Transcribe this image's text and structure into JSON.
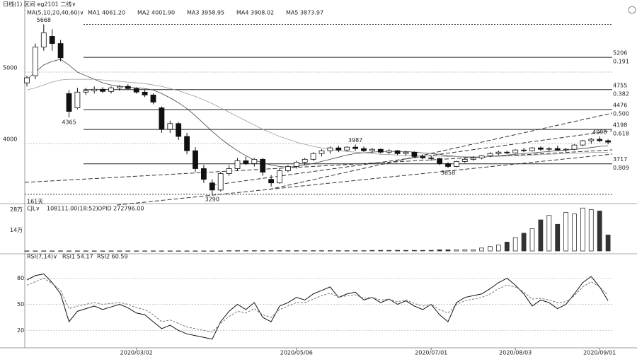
{
  "header": "日线(1)  区间  eg2101  二线∨",
  "ma_legend": [
    "MA(5,10,20,40,60)∨",
    "MA1 4061.20",
    "MA2 4001.90",
    "MA3 3958.95",
    "MA4 3908.02",
    "MA5 3873.97"
  ],
  "chart_data": [
    {
      "type": "candlestick",
      "categories": [
        null,
        null,
        null,
        null,
        null,
        null,
        null,
        null,
        null,
        null,
        null,
        null,
        null,
        "2020/03/02",
        null,
        null,
        null,
        null,
        null,
        null,
        null,
        null,
        null,
        null,
        null,
        null,
        null,
        null,
        null,
        null,
        null,
        null,
        "2020/05/06",
        null,
        null,
        null,
        null,
        null,
        null,
        null,
        null,
        null,
        null,
        null,
        null,
        null,
        null,
        null,
        "2020/07/01",
        null,
        null,
        null,
        null,
        null,
        null,
        null,
        null,
        null,
        "2020/08/03",
        null,
        null,
        null,
        null,
        null,
        null,
        null,
        null,
        null,
        "2020/09/01",
        null
      ],
      "open": [
        4850,
        4950,
        5350,
        5500,
        5400,
        4700,
        4500,
        4720,
        4740,
        4760,
        4730,
        4780,
        4800,
        4770,
        4720,
        4680,
        4500,
        4200,
        4280,
        4100,
        3900,
        3650,
        3450,
        3350,
        3580,
        3650,
        3760,
        3720,
        3780,
        3500,
        3450,
        3620,
        3680,
        3740,
        3780,
        3860,
        3900,
        3940,
        3910,
        3950,
        3930,
        3900,
        3920,
        3880,
        3900,
        3860,
        3880,
        3820,
        3800,
        3790,
        3720,
        3680,
        3750,
        3780,
        3800,
        3830,
        3860,
        3880,
        3870,
        3910,
        3900,
        3940,
        3920,
        3930,
        3910,
        3920,
        3980,
        4040,
        4060,
        4040
      ],
      "high": [
        4950,
        5400,
        5668,
        5600,
        5450,
        4750,
        4780,
        4780,
        4800,
        4790,
        4800,
        4820,
        4830,
        4790,
        4760,
        4700,
        4520,
        4320,
        4300,
        4150,
        3950,
        3700,
        3500,
        3600,
        3700,
        3800,
        3820,
        3800,
        3800,
        3560,
        3650,
        3700,
        3760,
        3800,
        3880,
        3920,
        3960,
        3970,
        3960,
        3987,
        3960,
        3940,
        3930,
        3920,
        3910,
        3900,
        3890,
        3850,
        3830,
        3800,
        3740,
        3760,
        3800,
        3820,
        3840,
        3880,
        3900,
        3900,
        3920,
        3940,
        3950,
        3960,
        3950,
        3970,
        3940,
        3990,
        4050,
        4080,
        4098,
        4060
      ],
      "low": [
        4800,
        4900,
        5300,
        5300,
        5150,
        4365,
        4480,
        4680,
        4700,
        4710,
        4700,
        4740,
        4750,
        4700,
        4650,
        4550,
        4150,
        4150,
        4050,
        3850,
        3600,
        3450,
        3290,
        3330,
        3550,
        3620,
        3700,
        3680,
        3550,
        3400,
        3440,
        3600,
        3650,
        3700,
        3760,
        3820,
        3860,
        3880,
        3890,
        3900,
        3880,
        3870,
        3860,
        3850,
        3840,
        3830,
        3800,
        3780,
        3760,
        3700,
        3658,
        3670,
        3730,
        3760,
        3780,
        3810,
        3840,
        3850,
        3860,
        3880,
        3890,
        3900,
        3890,
        3900,
        3880,
        3910,
        3960,
        4000,
        4020,
        3990
      ],
      "close": [
        4920,
        5350,
        5550,
        5400,
        5200,
        4450,
        4720,
        4740,
        4760,
        4730,
        4780,
        4800,
        4770,
        4720,
        4680,
        4580,
        4200,
        4280,
        4100,
        3900,
        3650,
        3500,
        3350,
        3580,
        3650,
        3760,
        3720,
        3780,
        3600,
        3450,
        3620,
        3680,
        3740,
        3780,
        3860,
        3900,
        3940,
        3910,
        3950,
        3930,
        3900,
        3920,
        3880,
        3900,
        3860,
        3880,
        3820,
        3800,
        3790,
        3720,
        3680,
        3750,
        3780,
        3800,
        3830,
        3860,
        3880,
        3870,
        3910,
        3900,
        3940,
        3920,
        3930,
        3910,
        3920,
        3980,
        4040,
        4060,
        4040,
        4020
      ],
      "series": [
        {
          "color": "#444444",
          "values": [
            4900,
            5000,
            5100,
            5150,
            5180,
            5100,
            5000,
            4950,
            4900,
            4850,
            4820,
            4800,
            4790,
            4780,
            4770,
            4750,
            4700,
            4640,
            4570,
            4490,
            4390,
            4280,
            4170,
            4070,
            3980,
            3900,
            3830,
            3770,
            3730,
            3700,
            3680,
            3670,
            3680,
            3700,
            3720,
            3750,
            3780,
            3810,
            3840,
            3860,
            3870,
            3880,
            3890,
            3890,
            3890,
            3890,
            3880,
            3870,
            3860,
            3850,
            3830,
            3820,
            3810,
            3810,
            3810,
            3820,
            3830,
            3840,
            3850,
            3860,
            3870,
            3880,
            3890,
            3900,
            3910,
            3920,
            3930,
            3945,
            3960,
            3970
          ]
        },
        {
          "color": "#999999",
          "values": [
            4750,
            4780,
            4820,
            4860,
            4890,
            4900,
            4900,
            4900,
            4900,
            4890,
            4880,
            4870,
            4860,
            4850,
            4840,
            4820,
            4800,
            4770,
            4740,
            4700,
            4660,
            4610,
            4560,
            4500,
            4440,
            4380,
            4320,
            4260,
            4200,
            4150,
            4100,
            4060,
            4020,
            3990,
            3960,
            3940,
            3920,
            3900,
            3890,
            3880,
            3870,
            3860,
            3850,
            3845,
            3840,
            3835,
            3830,
            3828,
            3826,
            3824,
            3820,
            3818,
            3816,
            3815,
            3815,
            3818,
            3822,
            3826,
            3830,
            3835,
            3840,
            3845,
            3850,
            3855,
            3860,
            3865,
            3870,
            3875,
            3880,
            3874
          ]
        }
      ],
      "ylim": [
        3190,
        5910
      ],
      "yticks": [
        4000,
        5000
      ],
      "grid": true,
      "fib_levels": [
        {
          "price": 5206,
          "ratio": "0.191"
        },
        {
          "price": 4755,
          "ratio": "0.382"
        },
        {
          "price": 4476,
          "ratio": "0.500"
        },
        {
          "price": 4198,
          "ratio": "0.618"
        },
        {
          "price": 3717,
          "ratio": "0.809"
        }
      ],
      "annotation": "161天"
    },
    {
      "type": "bar",
      "title": "CJL∨",
      "legend": [
        "108111.00(18:52)",
        "OPID 272796.00"
      ],
      "values": [
        500,
        500,
        500,
        500,
        500,
        500,
        500,
        500,
        500,
        500,
        500,
        500,
        500,
        500,
        500,
        500,
        500,
        500,
        500,
        500,
        500,
        500,
        500,
        500,
        2000,
        2000,
        2000,
        2000,
        2000,
        2000,
        2000,
        2000,
        2000,
        2000,
        2000,
        2000,
        2000,
        2000,
        2000,
        2000,
        2000,
        4000,
        4000,
        4000,
        4000,
        4000,
        4000,
        4000,
        4000,
        8000,
        8000,
        8000,
        8000,
        8000,
        20000,
        30000,
        40000,
        60000,
        90000,
        120000,
        150000,
        210000,
        240000,
        180000,
        260000,
        250000,
        290000,
        280000,
        270000,
        108111
      ],
      "ylim": [
        0,
        320000
      ],
      "yticks": [
        {
          "value": 140000,
          "label": "14万"
        },
        {
          "value": 280000,
          "label": "28万"
        }
      ]
    },
    {
      "type": "line",
      "title": "RSI(7,14)∨",
      "series": [
        {
          "name": "RSI1 54.17",
          "color": "#111111",
          "values": [
            78,
            83,
            85,
            75,
            62,
            30,
            42,
            45,
            48,
            44,
            47,
            50,
            46,
            40,
            38,
            30,
            22,
            26,
            20,
            16,
            14,
            12,
            10,
            30,
            42,
            50,
            44,
            52,
            35,
            30,
            48,
            52,
            58,
            55,
            62,
            66,
            70,
            58,
            62,
            64,
            55,
            58,
            52,
            56,
            50,
            54,
            48,
            44,
            50,
            38,
            30,
            52,
            58,
            60,
            62,
            68,
            75,
            80,
            72,
            62,
            48,
            55,
            52,
            45,
            50,
            62,
            75,
            82,
            70,
            54.17
          ]
        },
        {
          "name": "RSI2 60.59",
          "color": "#777777",
          "values": [
            72,
            76,
            80,
            74,
            66,
            45,
            48,
            50,
            52,
            50,
            51,
            52,
            50,
            46,
            44,
            38,
            30,
            32,
            28,
            24,
            22,
            20,
            18,
            28,
            36,
            42,
            40,
            45,
            38,
            35,
            44,
            48,
            52,
            52,
            56,
            60,
            63,
            58,
            60,
            61,
            57,
            58,
            55,
            56,
            53,
            55,
            51,
            48,
            50,
            44,
            40,
            50,
            54,
            56,
            58,
            62,
            68,
            72,
            70,
            64,
            56,
            57,
            55,
            52,
            53,
            60,
            70,
            76,
            70,
            60.59
          ]
        }
      ],
      "ylim": [
        0,
        100
      ],
      "yticks": [
        20,
        50,
        80
      ]
    }
  ]
}
